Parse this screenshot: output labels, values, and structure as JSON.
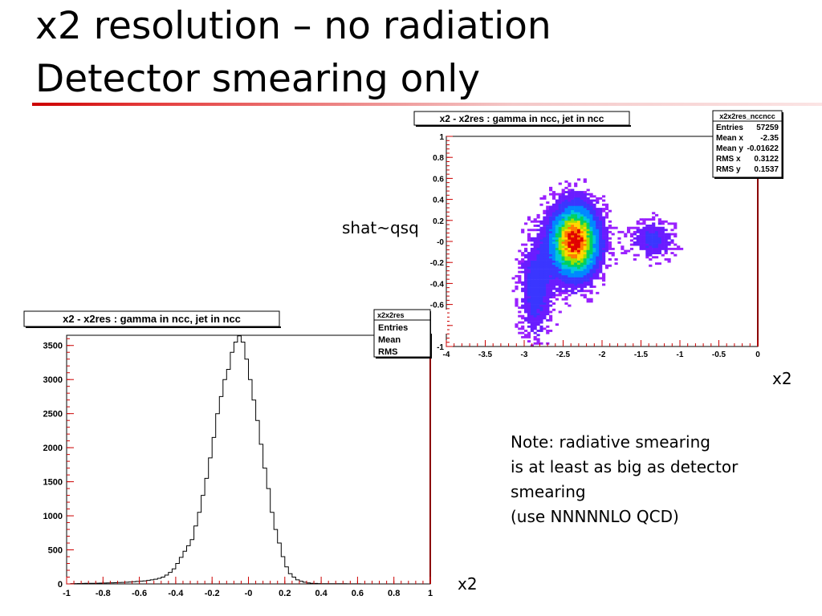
{
  "slide": {
    "title_line1": "x2 resolution – no radiation",
    "title_line2": "Detector smearing only",
    "label_shat": "shat~qsq",
    "xlabel_top": "x2",
    "xlabel_bottom": "x2",
    "note_lines": [
      "Note: radiative smearing",
      "is at least as big as detector",
      "smearing",
      "(use NNNNNLO QCD)"
    ]
  },
  "colors": {
    "title_rule": "#cc0000",
    "axis_frame_right": "#8b0000",
    "ticks": "#cc0000"
  },
  "chart_data": [
    {
      "type": "heatmap",
      "title": "x2 - x2res : gamma in ncc, jet in ncc",
      "stats_title": "x2x2res_nccncc",
      "stats": [
        {
          "label": "Entries",
          "value": "57259"
        },
        {
          "label": "Mean x",
          "value": "-2.35"
        },
        {
          "label": "Mean y",
          "value": "-0.01622"
        },
        {
          "label": "RMS x",
          "value": "0.3122"
        },
        {
          "label": "RMS y",
          "value": "0.1537"
        }
      ],
      "xlim": [
        -4,
        0
      ],
      "ylim": [
        -1,
        1
      ],
      "xtick_labels": [
        "-4",
        "-3.5",
        "-3",
        "-2.5",
        "-2",
        "-1.5",
        "-1",
        "-0.5",
        "0"
      ],
      "ytick_labels": [
        "-1",
        "-0.8",
        "-0.6",
        "-0.4",
        "-0.2",
        "-0",
        "0.2",
        "0.4",
        "0.6",
        "0.8",
        "1"
      ],
      "xlabel": "x2",
      "ylabel": "shat~qsq",
      "clusters": [
        {
          "x": -2.35,
          "y": 0.0,
          "sx": 0.2,
          "sy": 0.22,
          "weight": 1.0
        },
        {
          "x": -1.35,
          "y": 0.02,
          "sx": 0.18,
          "sy": 0.12,
          "weight": 0.22
        },
        {
          "x": -2.85,
          "y": -0.45,
          "sx": 0.14,
          "sy": 0.3,
          "weight": 0.25
        }
      ]
    },
    {
      "type": "bar",
      "title": "x2 - x2res : gamma in ncc, jet in ncc",
      "stats_title": "x2x2res",
      "stats": [
        {
          "label": "Entries",
          "value": ""
        },
        {
          "label": "Mean",
          "value": ""
        },
        {
          "label": "RMS",
          "value": ""
        }
      ],
      "xlim": [
        -1,
        1
      ],
      "ylim": [
        0,
        3650
      ],
      "xtick_labels": [
        "-1",
        "-0.8",
        "-0.6",
        "-0.4",
        "-0.2",
        "-0",
        "0.2",
        "0.4",
        "0.6",
        "0.8",
        "1"
      ],
      "ytick_labels": [
        "0",
        "500",
        "1000",
        "1500",
        "2000",
        "2500",
        "3000",
        "3500"
      ],
      "xlabel": "x2",
      "bin_edges_start": -0.98,
      "bin_width": 0.02,
      "values": [
        5,
        5,
        6,
        7,
        8,
        9,
        10,
        11,
        12,
        13,
        14,
        16,
        18,
        20,
        22,
        25,
        28,
        32,
        36,
        40,
        45,
        52,
        60,
        70,
        82,
        100,
        130,
        170,
        220,
        300,
        390,
        480,
        560,
        650,
        850,
        1050,
        1300,
        1550,
        1850,
        2150,
        2500,
        2750,
        3000,
        3150,
        3400,
        3550,
        3640,
        3550,
        3300,
        3000,
        2700,
        2400,
        2050,
        1700,
        1400,
        1050,
        800,
        600,
        400,
        250,
        150,
        100,
        60,
        40,
        25,
        15,
        10,
        7,
        5,
        4,
        3,
        3,
        2,
        2,
        2,
        2,
        1,
        1,
        1,
        1
      ]
    }
  ]
}
